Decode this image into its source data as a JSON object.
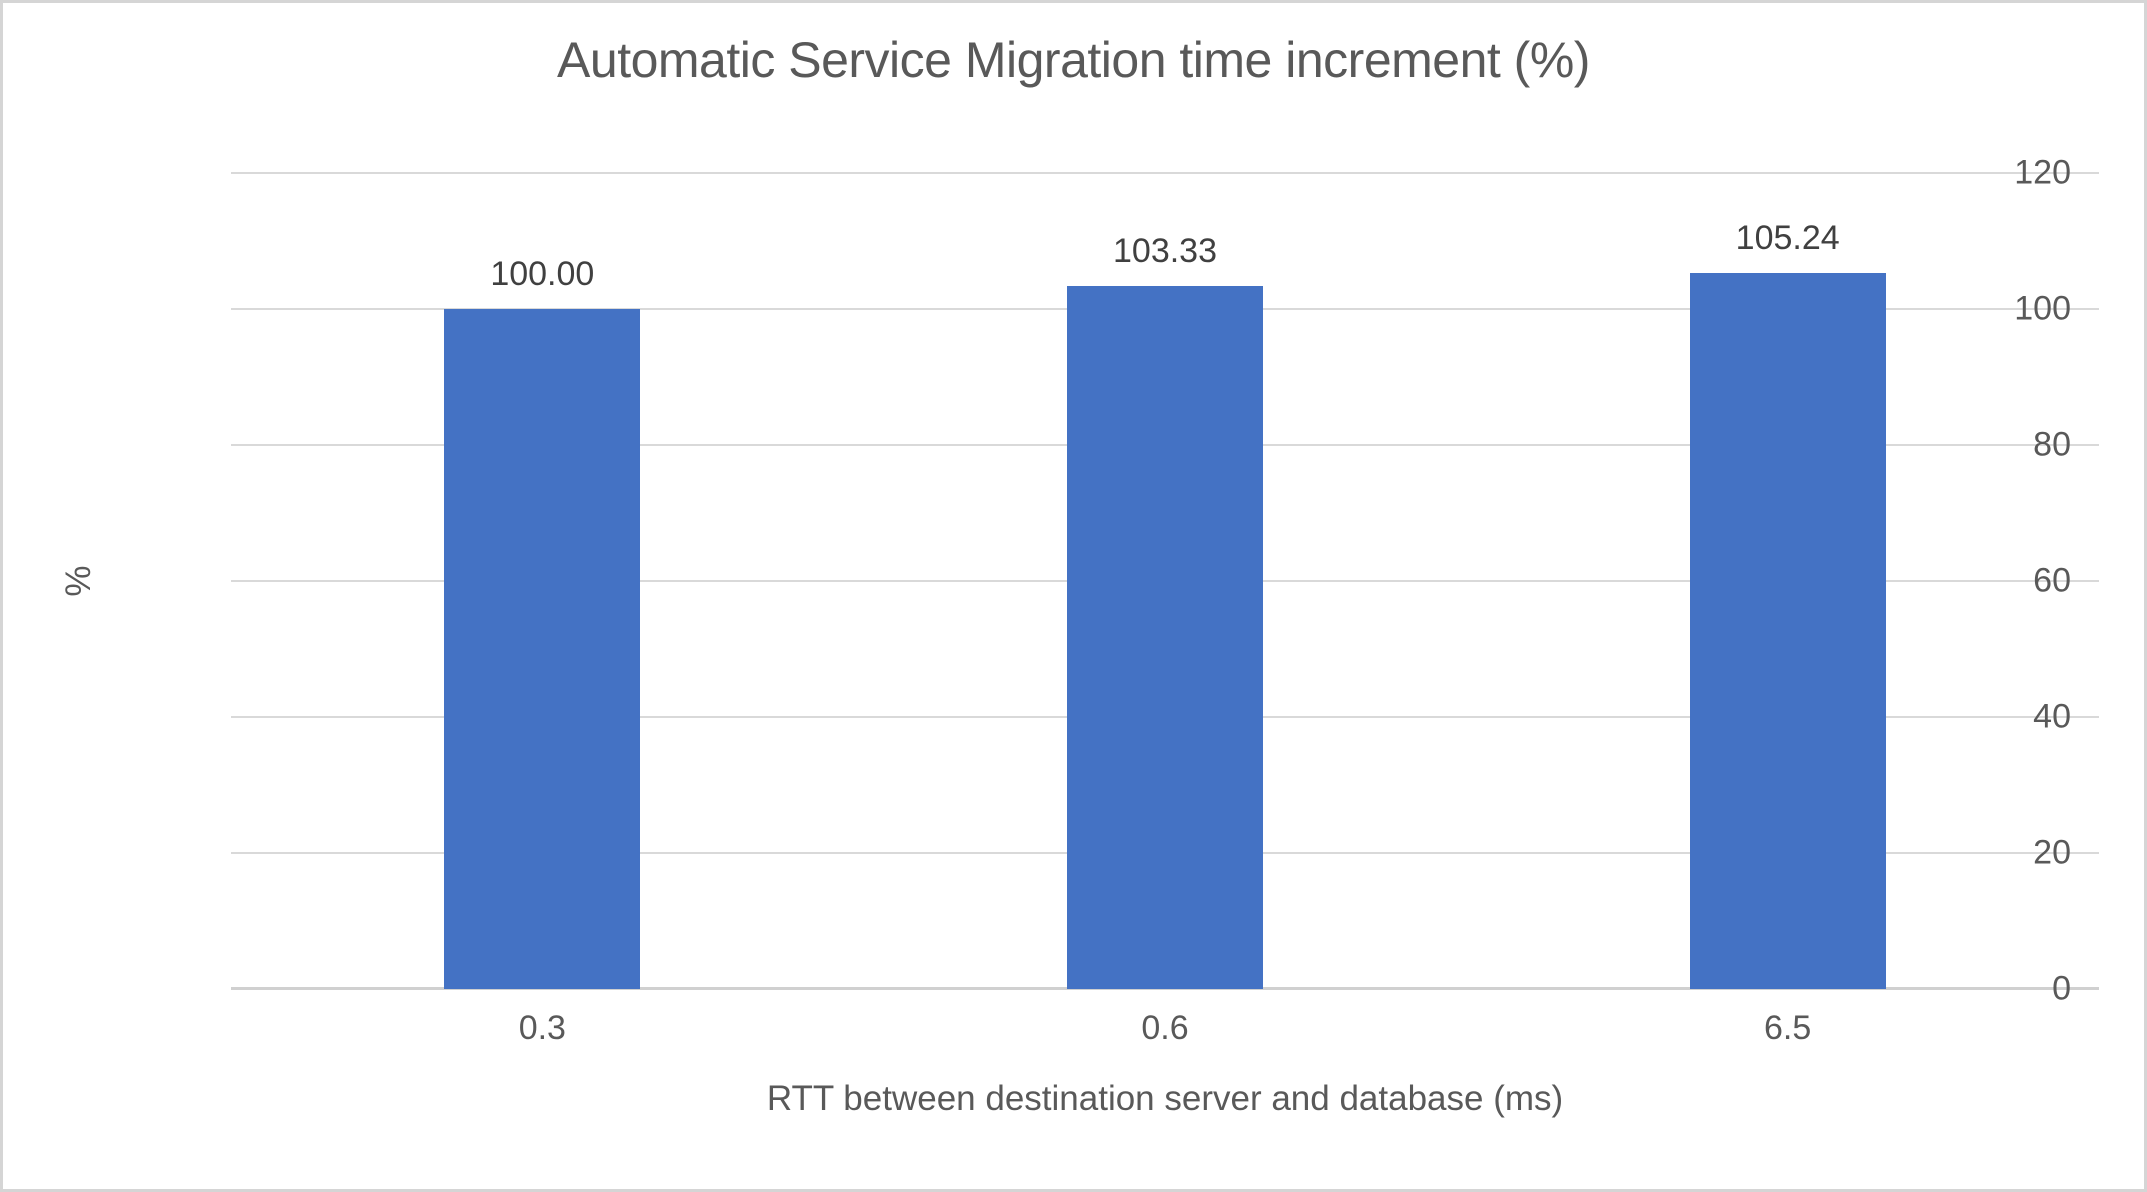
{
  "chart_data": {
    "type": "bar",
    "title": "Automatic Service Migration time increment (%)",
    "xlabel": "RTT between destination server and database (ms)",
    "ylabel": "%",
    "categories": [
      "0.3",
      "0.6",
      "6.5"
    ],
    "values": [
      100.0,
      103.33,
      105.24
    ],
    "data_labels": [
      "100.00",
      "103.33",
      "105.24"
    ],
    "ylim": [
      0,
      120
    ],
    "yticks": [
      0,
      20,
      40,
      60,
      80,
      100,
      120
    ],
    "grid": true,
    "legend_position": "none",
    "colors": {
      "bar": "#4472C4",
      "title_text": "#595959",
      "axis_text": "#595959",
      "data_label_text": "#404040",
      "gridline": "#D9D9D9",
      "axis_line": "#D0D0D0",
      "background": "#FFFFFF",
      "canvas_border": "#D5D5D5"
    }
  }
}
